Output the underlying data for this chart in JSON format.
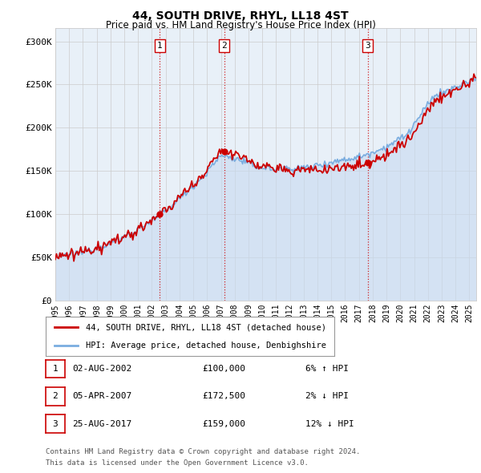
{
  "title": "44, SOUTH DRIVE, RHYL, LL18 4ST",
  "subtitle": "Price paid vs. HM Land Registry's House Price Index (HPI)",
  "ylabel_ticks": [
    "£0",
    "£50K",
    "£100K",
    "£150K",
    "£200K",
    "£250K",
    "£300K"
  ],
  "ytick_values": [
    0,
    50000,
    100000,
    150000,
    200000,
    250000,
    300000
  ],
  "ylim": [
    0,
    315000
  ],
  "xlim_start": 1995.0,
  "xlim_end": 2025.5,
  "bg_color": "#ffffff",
  "plot_bg_color": "#e8f0f8",
  "grid_color": "#cccccc",
  "hpi_color": "#7aade0",
  "hpi_fill_color": "#c8daf0",
  "price_color": "#cc0000",
  "vline_color": "#cc0000",
  "shade_color": "#d0e4f5",
  "sales": [
    {
      "label": "1",
      "year": 2002.58,
      "price": 100000
    },
    {
      "label": "2",
      "year": 2007.25,
      "price": 172500
    },
    {
      "label": "3",
      "year": 2017.65,
      "price": 159000
    }
  ],
  "legend_label_red": "44, SOUTH DRIVE, RHYL, LL18 4ST (detached house)",
  "legend_label_blue": "HPI: Average price, detached house, Denbighshire",
  "legend_color_red": "#cc0000",
  "legend_color_blue": "#7aade0",
  "table_rows": [
    {
      "num": "1",
      "date": "02-AUG-2002",
      "price": "£100,000",
      "hpi": "6% ↑ HPI"
    },
    {
      "num": "2",
      "date": "05-APR-2007",
      "price": "£172,500",
      "hpi": "2% ↓ HPI"
    },
    {
      "num": "3",
      "date": "25-AUG-2017",
      "price": "£159,000",
      "hpi": "12% ↓ HPI"
    }
  ],
  "footer_line1": "Contains HM Land Registry data © Crown copyright and database right 2024.",
  "footer_line2": "This data is licensed under the Open Government Licence v3.0.",
  "xtick_years": [
    1995,
    1996,
    1997,
    1998,
    1999,
    2000,
    2001,
    2002,
    2003,
    2004,
    2005,
    2006,
    2007,
    2008,
    2009,
    2010,
    2011,
    2012,
    2013,
    2014,
    2015,
    2016,
    2017,
    2018,
    2019,
    2020,
    2021,
    2022,
    2023,
    2024,
    2025
  ],
  "marker_y": 295000
}
